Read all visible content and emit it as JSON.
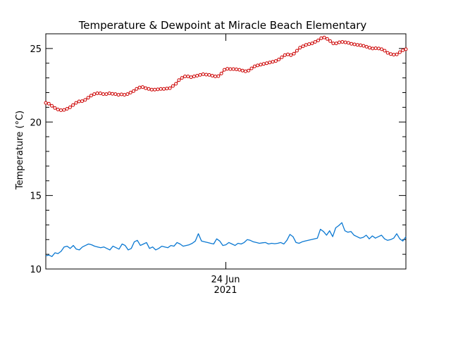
{
  "chart_data": {
    "type": "line",
    "title": "Temperature & Dewpoint at Miracle Beach Elementary",
    "ylabel": "Temperature (°C)",
    "xlabel": "",
    "ylim": [
      10,
      26
    ],
    "yticks": [
      10,
      15,
      20,
      25
    ],
    "x_tick_label": [
      "24 Jun",
      "2021"
    ],
    "grid": false,
    "colors": {
      "temperature": "#cc0000",
      "dewpoint": "#0a78d2"
    },
    "series": [
      {
        "key": "temperature",
        "marker": "open-circle",
        "values": [
          21.3,
          21.25,
          21.1,
          20.95,
          20.85,
          20.8,
          20.82,
          20.9,
          21.0,
          21.15,
          21.3,
          21.4,
          21.42,
          21.5,
          21.65,
          21.8,
          21.9,
          21.95,
          21.95,
          21.9,
          21.9,
          21.95,
          21.92,
          21.9,
          21.85,
          21.88,
          21.85,
          21.9,
          22.0,
          22.1,
          22.25,
          22.35,
          22.38,
          22.3,
          22.25,
          22.2,
          22.2,
          22.22,
          22.25,
          22.25,
          22.28,
          22.3,
          22.45,
          22.6,
          22.85,
          23.0,
          23.1,
          23.1,
          23.05,
          23.1,
          23.15,
          23.2,
          23.25,
          23.22,
          23.2,
          23.15,
          23.1,
          23.12,
          23.3,
          23.55,
          23.62,
          23.6,
          23.6,
          23.58,
          23.55,
          23.5,
          23.45,
          23.5,
          23.65,
          23.78,
          23.85,
          23.9,
          23.95,
          24.0,
          24.05,
          24.1,
          24.15,
          24.25,
          24.4,
          24.55,
          24.6,
          24.55,
          24.65,
          24.85,
          25.05,
          25.15,
          25.25,
          25.3,
          25.35,
          25.45,
          25.55,
          25.7,
          25.75,
          25.65,
          25.5,
          25.35,
          25.35,
          25.42,
          25.45,
          25.42,
          25.38,
          25.32,
          25.28,
          25.25,
          25.22,
          25.18,
          25.12,
          25.05,
          25.0,
          25.02,
          25.0,
          24.95,
          24.85,
          24.7,
          24.62,
          24.58,
          24.6,
          24.75,
          24.88,
          24.95
        ]
      },
      {
        "key": "dewpoint",
        "marker": "none",
        "values": [
          10.9,
          10.95,
          10.85,
          11.1,
          11.05,
          11.2,
          11.5,
          11.55,
          11.4,
          11.6,
          11.35,
          11.3,
          11.5,
          11.6,
          11.7,
          11.65,
          11.55,
          11.5,
          11.45,
          11.5,
          11.4,
          11.3,
          11.55,
          11.45,
          11.35,
          11.7,
          11.6,
          11.3,
          11.4,
          11.85,
          11.95,
          11.6,
          11.7,
          11.8,
          11.4,
          11.5,
          11.3,
          11.4,
          11.55,
          11.5,
          11.45,
          11.6,
          11.55,
          11.8,
          11.7,
          11.55,
          11.6,
          11.65,
          11.75,
          11.9,
          12.4,
          11.9,
          11.85,
          11.8,
          11.75,
          11.7,
          12.05,
          11.9,
          11.6,
          11.65,
          11.8,
          11.7,
          11.6,
          11.75,
          11.7,
          11.8,
          12.0,
          11.95,
          11.85,
          11.8,
          11.75,
          11.78,
          11.8,
          11.7,
          11.75,
          11.72,
          11.75,
          11.8,
          11.7,
          11.95,
          12.35,
          12.2,
          11.8,
          11.75,
          11.85,
          11.9,
          11.95,
          12.0,
          12.05,
          12.1,
          12.7,
          12.55,
          12.3,
          12.6,
          12.2,
          12.8,
          12.95,
          13.15,
          12.6,
          12.5,
          12.55,
          12.3,
          12.2,
          12.1,
          12.15,
          12.3,
          12.05,
          12.25,
          12.1,
          12.2,
          12.3,
          12.05,
          11.95,
          12.0,
          12.1,
          12.4,
          12.05,
          11.9,
          12.2
        ]
      }
    ]
  }
}
